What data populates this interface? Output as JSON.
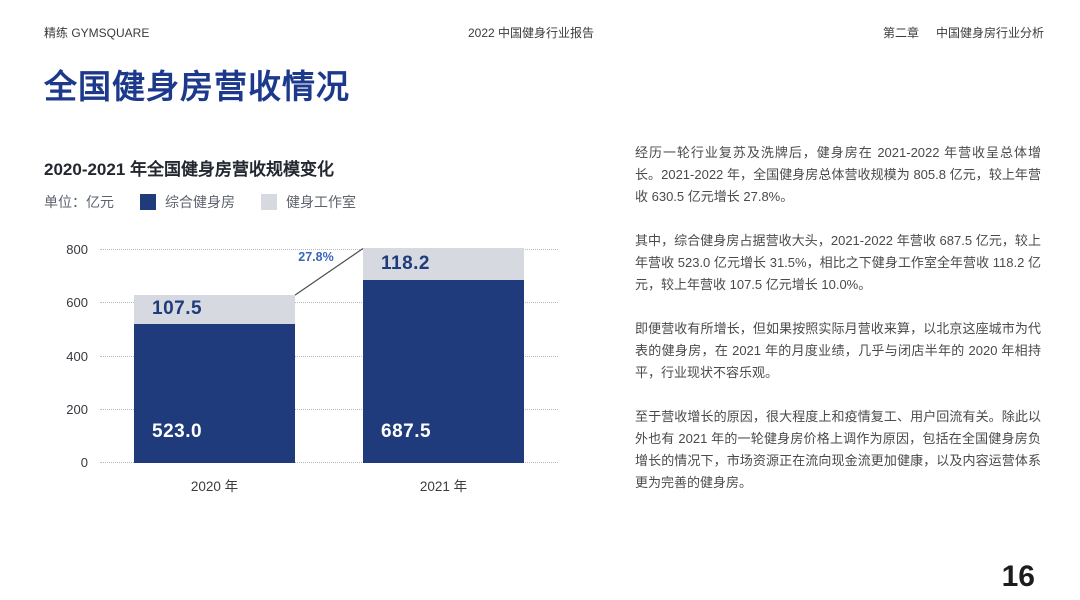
{
  "header": {
    "brand": "精练 GYMSQUARE",
    "report_title": "2022 中国健身行业报告",
    "chapter": "第二章",
    "chapter_title": "中国健身房行业分析"
  },
  "page_title": "全国健身房营收情况",
  "chart": {
    "title": "2020-2021 年全国健身房营收规模变化",
    "unit_label": "单位：亿元",
    "growth_label": "27.8%"
  },
  "chart_data": {
    "type": "bar",
    "stacked": true,
    "title": "2020-2021 年全国健身房营收规模变化",
    "unit": "亿元",
    "categories": [
      "2020 年",
      "2021 年"
    ],
    "series": [
      {
        "name": "综合健身房",
        "color": "#1f3b7c",
        "values": [
          523.0,
          687.5
        ],
        "label_color": "#ffffff"
      },
      {
        "name": "健身工作室",
        "color": "#d6dae0",
        "values": [
          107.5,
          118.2
        ],
        "label_color": "#1f3b7c"
      }
    ],
    "totals": [
      630.5,
      805.8
    ],
    "growth_annotation": "27.8%",
    "yticks": [
      0,
      200,
      400,
      600,
      800
    ],
    "ylim": [
      0,
      800
    ],
    "grid": "dotted-horizontal",
    "legend_position": "top-left"
  },
  "article": {
    "paragraphs": [
      "经历一轮行业复苏及洗牌后，健身房在 2021-2022 年营收呈总体增长。2021-2022 年，全国健身房总体营收规模为 805.8 亿元，较上年营收 630.5 亿元增长 27.8%。",
      "其中，综合健身房占据营收大头，2021-2022 年营收 687.5 亿元，较上年营收 523.0 亿元增长 31.5%，相比之下健身工作室全年营收 118.2 亿元，较上年营收 107.5 亿元增长 10.0%。",
      "即便营收有所增长，但如果按照实际月营收来算，以北京这座城市为代表的健身房，在 2021 年的月度业绩，几乎与闭店半年的 2020 年相持平，行业现状不容乐观。",
      "至于营收增长的原因，很大程度上和疫情复工、用户回流有关。除此以外也有 2021 年的一轮健身房价格上调作为原因，包括在全国健身房负增长的情况下，市场资源正在流向现金流更加健康，以及内容运营体系更为完善的健身房。"
    ]
  },
  "page_number": "16"
}
